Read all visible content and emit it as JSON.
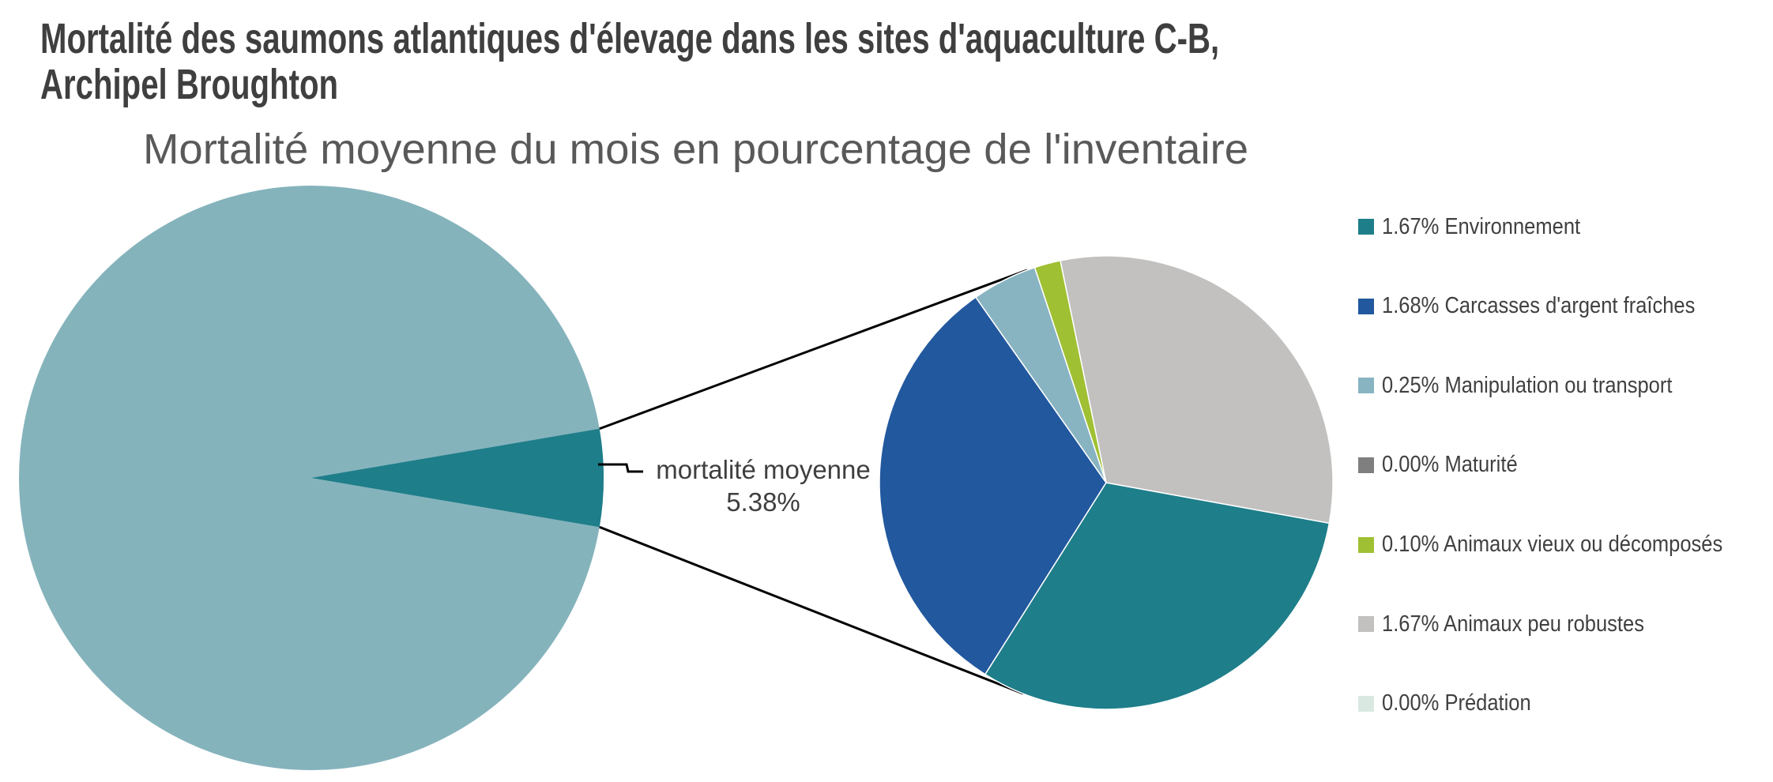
{
  "page": {
    "background": "#FFFFFF"
  },
  "header": {
    "title_lines": [
      "Mortalité des saumons atlantiques d'élevage dans les sites d'aquaculture C-B,",
      "Archipel Broughton"
    ],
    "title_color": "#3F3F3F",
    "subtitle": "Mortalité moyenne du mois en pourcentage de l'inventaire",
    "subtitle_color": "#595959"
  },
  "callout": {
    "label": "mortalité moyenne",
    "value": "5.38%"
  },
  "legend": {
    "position": "right",
    "items": [
      {
        "text": "1.67% Environnement",
        "color": "#1E7E8A"
      },
      {
        "text": "1.68% Carcasses d'argent fraîches",
        "color": "#22589E"
      },
      {
        "text": "0.25% Manipulation ou transport",
        "color": "#88B4C2"
      },
      {
        "text": "0.00% Maturité",
        "color": "#7F7F7F"
      },
      {
        "text": "0.10% Animaux vieux ou décomposés",
        "color": "#9FC032"
      },
      {
        "text": "1.67% Animaux peu robustes",
        "color": "#C2C1C0"
      },
      {
        "text": "0.00% Prédation",
        "color": "#D9E8E1"
      }
    ]
  },
  "chart_data": {
    "type": "pie",
    "subtype": "pie-of-pie",
    "title": "Mortalité des saumons atlantiques d'élevage dans les sites d'aquaculture C-B, Archipel Broughton",
    "subtitle": "Mortalité moyenne du mois en pourcentage de l'inventaire",
    "main_pie": {
      "label": "mortalité moyenne",
      "detail_wedge_pct": 5.38,
      "remainder_pct": 94.62,
      "body_color": "#85B3BC",
      "wedge_color": "#1E7E8A",
      "wedge_direction": "east"
    },
    "secondary_pie": {
      "categories": [
        "Environnement",
        "Carcasses d'argent fraîches",
        "Manipulation ou transport",
        "Maturité",
        "Animaux vieux ou décomposés",
        "Animaux peu robustes",
        "Prédation"
      ],
      "values": [
        1.67,
        1.68,
        0.25,
        0.0,
        0.1,
        1.67,
        0.0
      ],
      "colors": [
        "#1E7E8A",
        "#22589E",
        "#88B4C2",
        "#7F7F7F",
        "#9FC032",
        "#C2C1C0",
        "#D9E8E1"
      ],
      "start_angle_deg": 100.3
    },
    "legend_position": "right",
    "connector_lines": true,
    "background": "#FFFFFF"
  }
}
